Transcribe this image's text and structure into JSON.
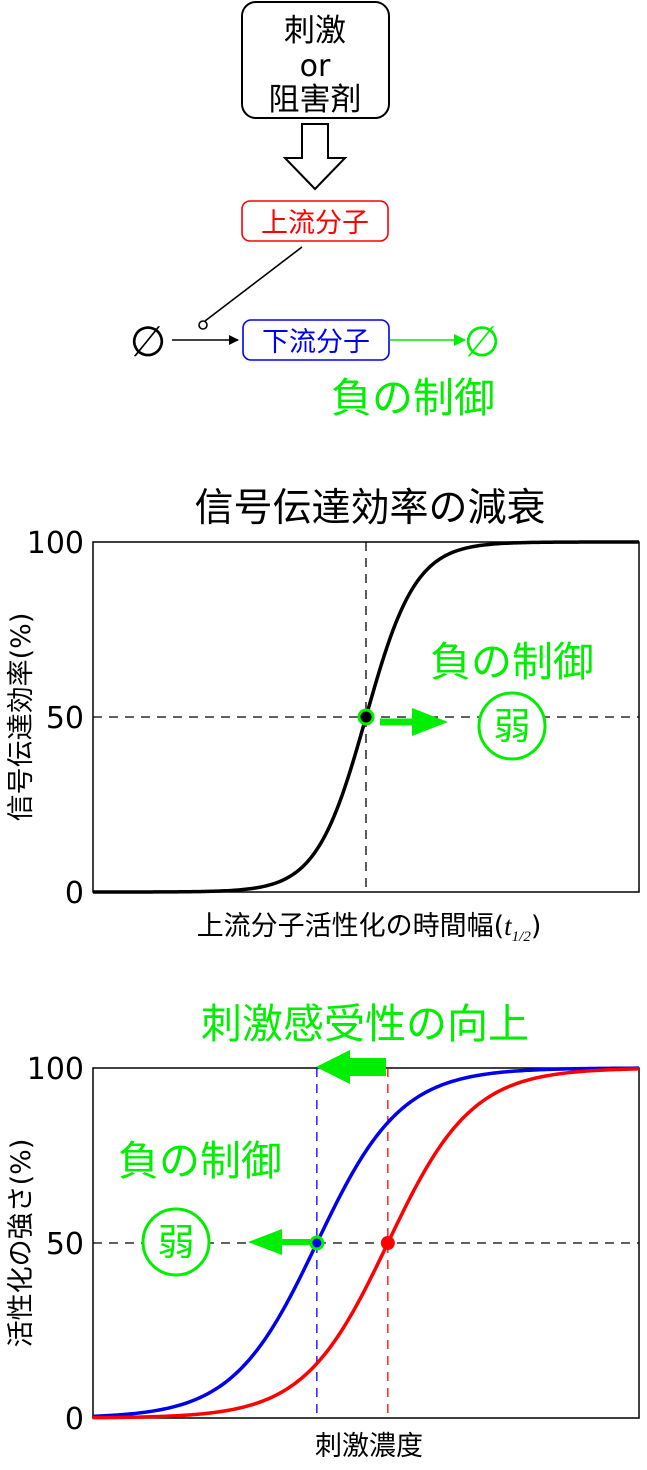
{
  "pathway": {
    "stimulus_lines": [
      "刺激",
      "or",
      "阻害剤"
    ],
    "upstream_label": "上流分子",
    "downstream_label": "下流分子",
    "null_symbol": "∅",
    "negative_control_label": "負の制御",
    "colors": {
      "upstream": "#ff0000",
      "downstream": "#0000ee",
      "negative": "#00ee00",
      "black": "#000000"
    }
  },
  "chart_data": [
    {
      "type": "line",
      "title": "信号伝達効率の減衰",
      "xlabel_main": "上流分子活性化の時間幅(",
      "xlabel_italic": "t",
      "xlabel_sub": "1/2",
      "xlabel_close": ")",
      "ylabel": "信号伝達効率(%)",
      "yticks": [
        0,
        50,
        100
      ],
      "ylim": [
        0,
        100
      ],
      "x_range": [
        0,
        1
      ],
      "grid": false,
      "reference_lines": {
        "x": 0.5,
        "y": 50,
        "style": "dashed"
      },
      "series": [
        {
          "midpoint": 0.5,
          "steepness": 22,
          "color": "#000000",
          "marker_at": 0.5
        }
      ],
      "annotation": {
        "text": "負の制御",
        "circled": "弱",
        "arrow": "right",
        "color": "#00ee00"
      }
    },
    {
      "type": "line",
      "title": "刺激感受性の向上",
      "xlabel": "刺激濃度",
      "ylabel": "活性化の強さ(%)",
      "yticks": [
        0,
        50,
        100
      ],
      "ylim": [
        0,
        100
      ],
      "x_range": [
        0,
        1
      ],
      "grid": false,
      "reference_lines": {
        "y": 50,
        "style": "dashed"
      },
      "series": [
        {
          "midpoint": 0.41,
          "steepness": 13,
          "color": "#0000ee",
          "marker_at": 0.41
        },
        {
          "midpoint": 0.54,
          "steepness": 13,
          "color": "#ff0000",
          "marker_at": 0.54
        }
      ],
      "annotation": {
        "text": "負の制御",
        "circled": "弱",
        "arrow": "left",
        "shift_arrow": "left",
        "color": "#00ee00"
      }
    }
  ]
}
